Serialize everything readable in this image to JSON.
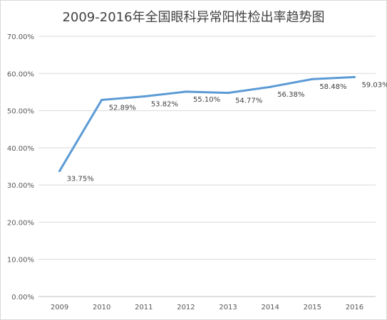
{
  "chart_data": {
    "type": "line",
    "title": "2009-2016年全国眼科异常阳性检出率趋势图",
    "categories": [
      "2009",
      "2010",
      "2011",
      "2012",
      "2013",
      "2014",
      "2015",
      "2016"
    ],
    "series": [
      {
        "values": [
          33.75,
          52.89,
          53.82,
          55.1,
          54.77,
          56.38,
          58.48,
          59.03
        ],
        "labels": [
          "33.75%",
          "52.89%",
          "53.82%",
          "55.10%",
          "54.77%",
          "56.38%",
          "58.48%",
          "59.03%"
        ],
        "color": "#5b9bd5"
      }
    ],
    "ylim": [
      0,
      70
    ],
    "yticks": [
      "0.00%",
      "10.00%",
      "20.00%",
      "30.00%",
      "40.00%",
      "50.00%",
      "60.00%",
      "70.00%"
    ],
    "grid": true,
    "legend": "none"
  }
}
